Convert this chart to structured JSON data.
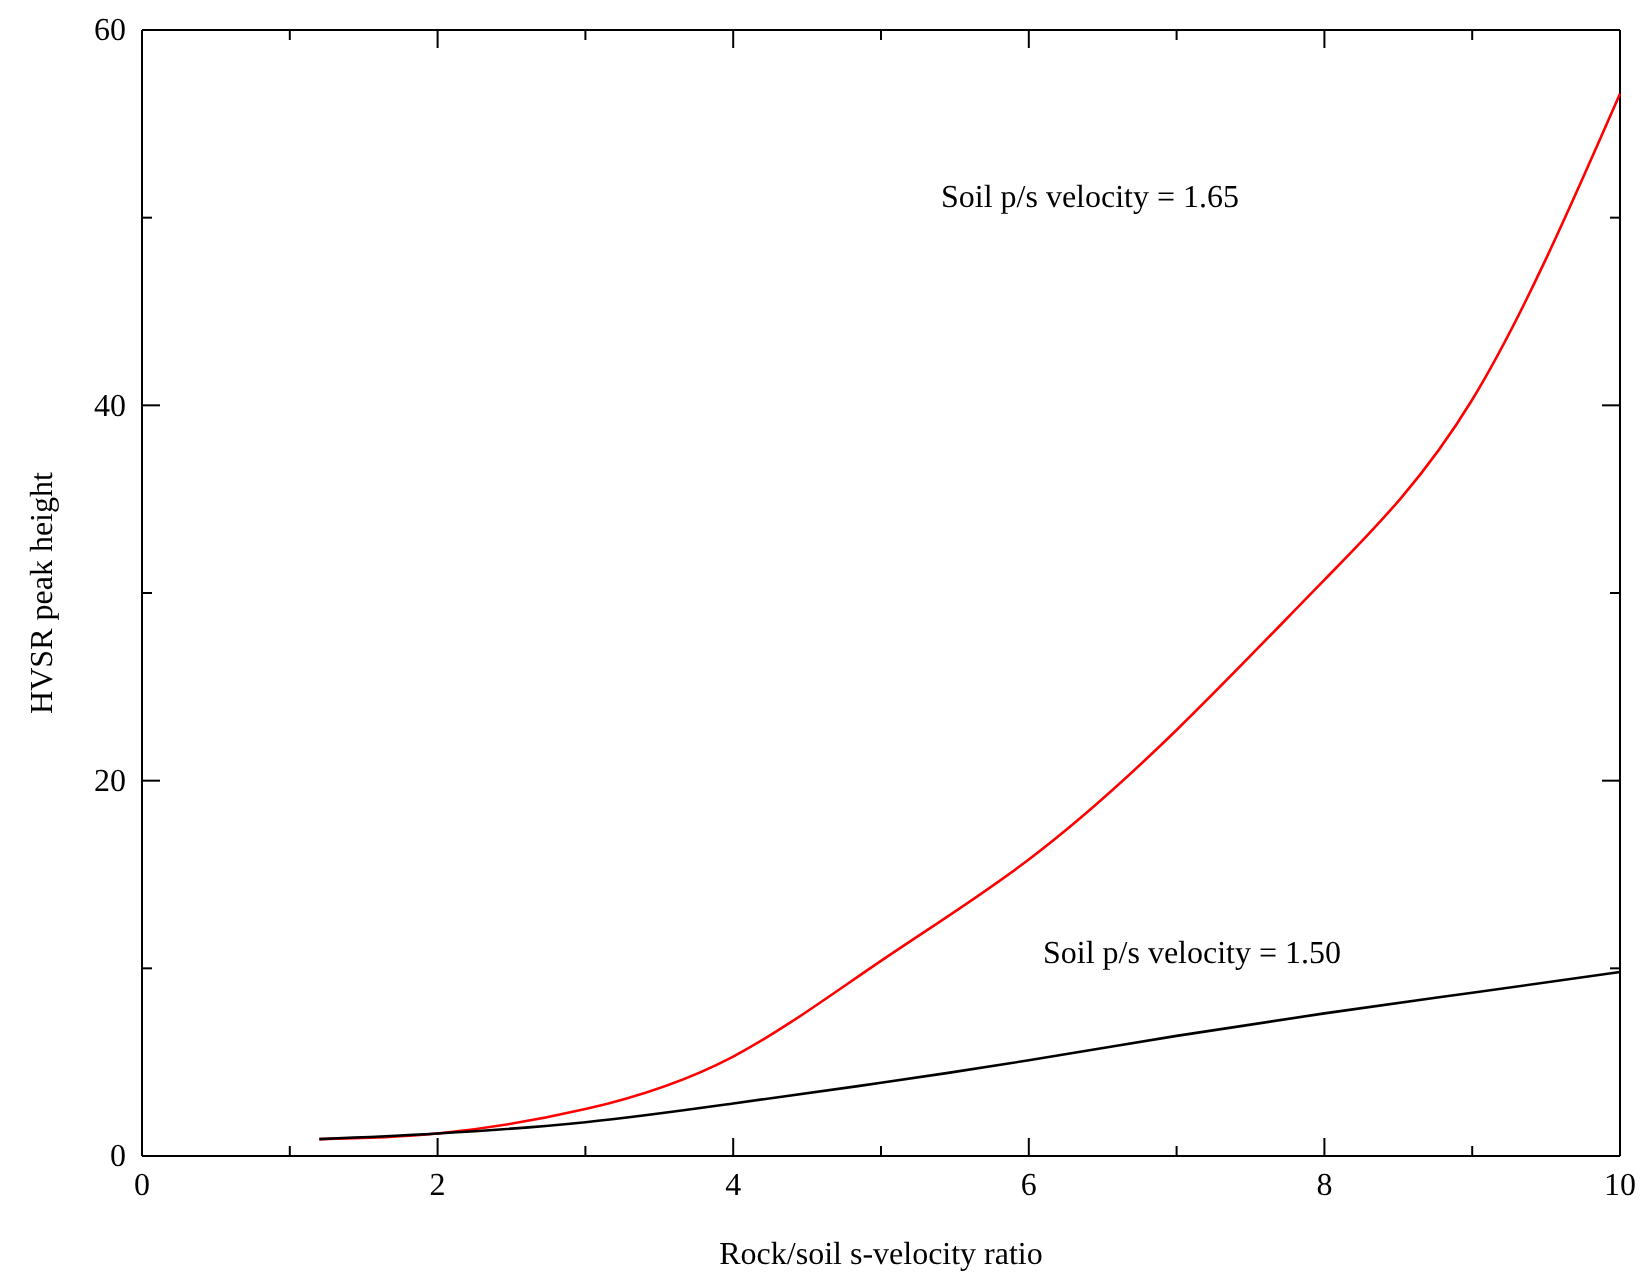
{
  "chart_data": {
    "type": "line",
    "xlabel": "Rock/soil s-velocity ratio",
    "ylabel": "HVSR peak height",
    "x": [
      1.2,
      2,
      3,
      4,
      5,
      6,
      7,
      8,
      9,
      10
    ],
    "series": [
      {
        "color": "#ff0000",
        "values": [
          0.9,
          1.2,
          2.5,
          5.3,
          10.4,
          15.8,
          22.7,
          30.7,
          40.3,
          56.6
        ]
      },
      {
        "color": "#000000",
        "values": [
          0.9,
          1.2,
          1.8,
          2.8,
          3.9,
          5.1,
          6.4,
          7.6,
          8.7,
          9.8
        ]
      }
    ],
    "xlim": [
      0,
      10
    ],
    "ylim": [
      0,
      60
    ],
    "xticks": [
      0,
      {
        "value": 1,
        "label": null
      },
      2,
      {
        "value": 3,
        "label": null
      },
      4,
      {
        "value": 5,
        "label": null
      },
      6,
      {
        "value": 7,
        "label": null
      },
      8,
      {
        "value": 9,
        "label": null
      },
      10
    ],
    "yticks": [
      0,
      {
        "value": 10,
        "label": null
      },
      20,
      {
        "value": 30,
        "label": null
      },
      40,
      {
        "value": 50,
        "label": null
      },
      60
    ],
    "annotations": [
      "Soil p/s velocity = 1.65",
      "Soil p/s velocity = 1.50"
    ],
    "grid": false,
    "marker": "none",
    "line_style": "solid"
  }
}
